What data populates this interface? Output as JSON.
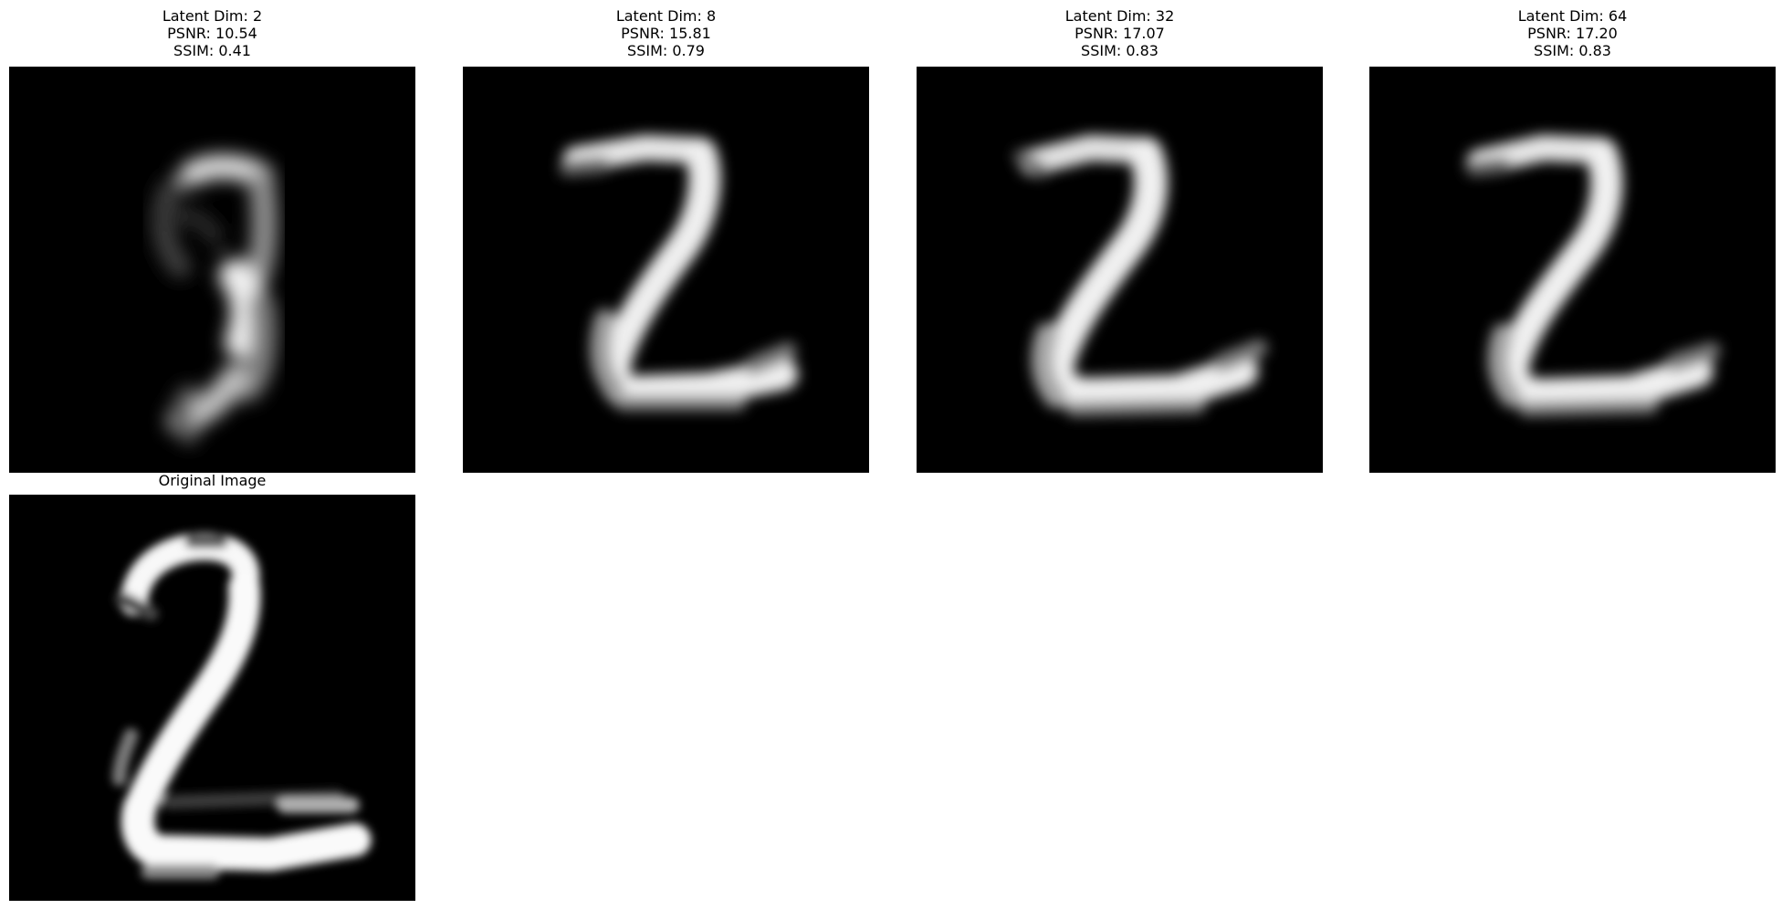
{
  "panels": [
    {
      "title_lines": [
        "Latent Dim: 2",
        "PSNR: 10.54",
        "SSIM: 0.41"
      ]
    },
    {
      "title_lines": [
        "Latent Dim: 8",
        "PSNR: 15.81",
        "SSIM: 0.79"
      ]
    },
    {
      "title_lines": [
        "Latent Dim: 32",
        "PSNR: 17.07",
        "SSIM: 0.83"
      ]
    },
    {
      "title_lines": [
        "Latent Dim: 64",
        "PSNR: 17.20",
        "SSIM: 0.83"
      ]
    },
    {
      "title_lines": [
        "Original Image"
      ]
    }
  ],
  "colors": {
    "background": "#ffffff",
    "image_background": "#000000",
    "stroke": "#ffffff"
  }
}
